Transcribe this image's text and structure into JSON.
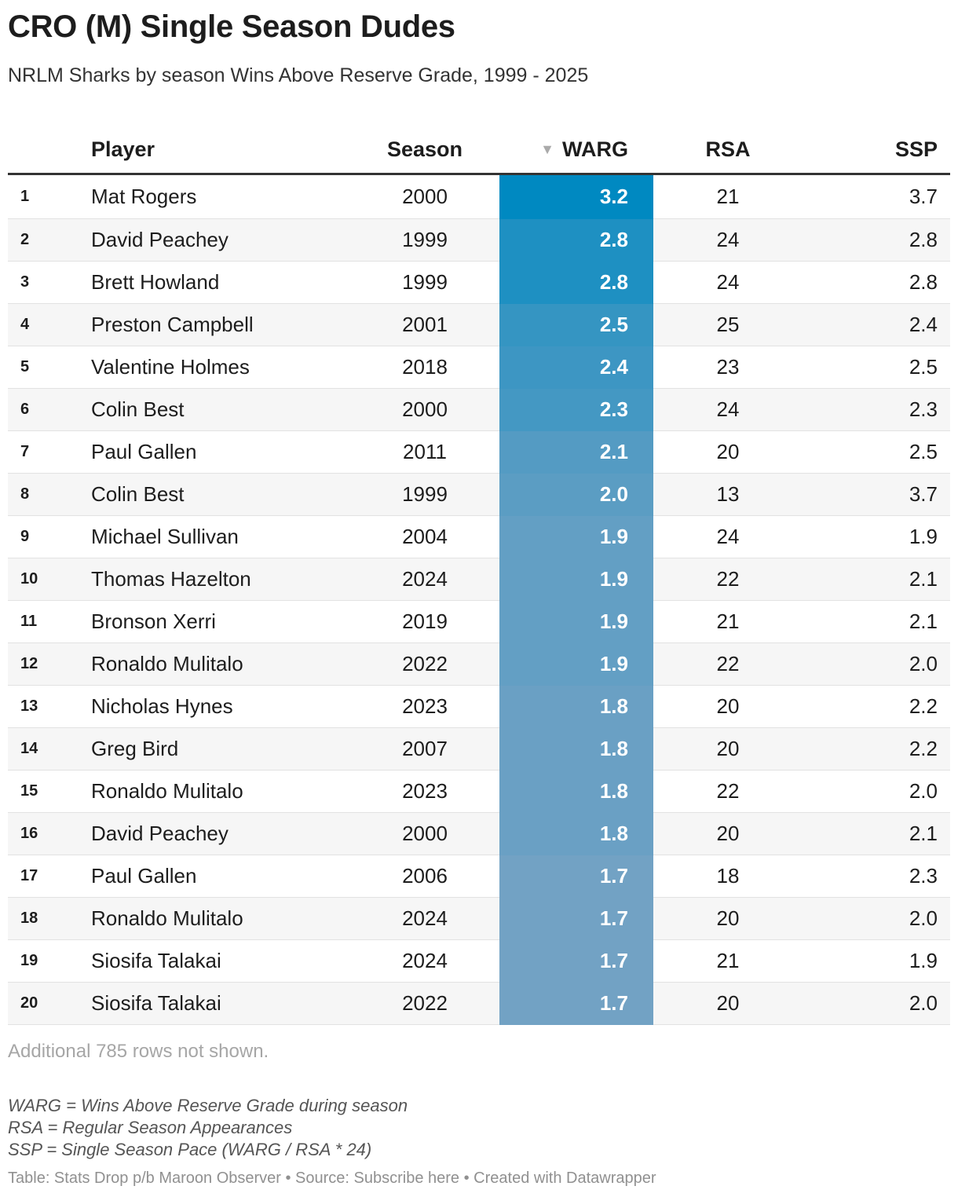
{
  "title": "CRO (M) Single Season Dudes",
  "subtitle": "NRLM Sharks by season Wins Above Reserve Grade, 1999 - 2025",
  "columns": {
    "player": "Player",
    "season": "Season",
    "warg": "WARG",
    "rsa": "RSA",
    "ssp": "SSP"
  },
  "sort": {
    "column": "WARG",
    "direction": "descending",
    "icon": "sort-down-triangle-icon"
  },
  "colors": {
    "warg_max": "#0089c1",
    "warg_min": "#72a2c4",
    "header_rule": "#333333",
    "zebra": "#f6f6f6"
  },
  "rows": [
    {
      "rank": "1",
      "player": "Mat Rogers",
      "season": "2000",
      "warg": "3.2",
      "rsa": "21",
      "ssp": "3.7"
    },
    {
      "rank": "2",
      "player": "David Peachey",
      "season": "1999",
      "warg": "2.8",
      "rsa": "24",
      "ssp": "2.8"
    },
    {
      "rank": "3",
      "player": "Brett Howland",
      "season": "1999",
      "warg": "2.8",
      "rsa": "24",
      "ssp": "2.8"
    },
    {
      "rank": "4",
      "player": "Preston Campbell",
      "season": "2001",
      "warg": "2.5",
      "rsa": "25",
      "ssp": "2.4"
    },
    {
      "rank": "5",
      "player": "Valentine Holmes",
      "season": "2018",
      "warg": "2.4",
      "rsa": "23",
      "ssp": "2.5"
    },
    {
      "rank": "6",
      "player": "Colin Best",
      "season": "2000",
      "warg": "2.3",
      "rsa": "24",
      "ssp": "2.3"
    },
    {
      "rank": "7",
      "player": "Paul Gallen",
      "season": "2011",
      "warg": "2.1",
      "rsa": "20",
      "ssp": "2.5"
    },
    {
      "rank": "8",
      "player": "Colin Best",
      "season": "1999",
      "warg": "2.0",
      "rsa": "13",
      "ssp": "3.7"
    },
    {
      "rank": "9",
      "player": "Michael Sullivan",
      "season": "2004",
      "warg": "1.9",
      "rsa": "24",
      "ssp": "1.9"
    },
    {
      "rank": "10",
      "player": "Thomas Hazelton",
      "season": "2024",
      "warg": "1.9",
      "rsa": "22",
      "ssp": "2.1"
    },
    {
      "rank": "11",
      "player": "Bronson Xerri",
      "season": "2019",
      "warg": "1.9",
      "rsa": "21",
      "ssp": "2.1"
    },
    {
      "rank": "12",
      "player": "Ronaldo Mulitalo",
      "season": "2022",
      "warg": "1.9",
      "rsa": "22",
      "ssp": "2.0"
    },
    {
      "rank": "13",
      "player": "Nicholas Hynes",
      "season": "2023",
      "warg": "1.8",
      "rsa": "20",
      "ssp": "2.2"
    },
    {
      "rank": "14",
      "player": "Greg Bird",
      "season": "2007",
      "warg": "1.8",
      "rsa": "20",
      "ssp": "2.2"
    },
    {
      "rank": "15",
      "player": "Ronaldo Mulitalo",
      "season": "2023",
      "warg": "1.8",
      "rsa": "22",
      "ssp": "2.0"
    },
    {
      "rank": "16",
      "player": "David Peachey",
      "season": "2000",
      "warg": "1.8",
      "rsa": "20",
      "ssp": "2.1"
    },
    {
      "rank": "17",
      "player": "Paul Gallen",
      "season": "2006",
      "warg": "1.7",
      "rsa": "18",
      "ssp": "2.3"
    },
    {
      "rank": "18",
      "player": "Ronaldo Mulitalo",
      "season": "2024",
      "warg": "1.7",
      "rsa": "20",
      "ssp": "2.0"
    },
    {
      "rank": "19",
      "player": "Siosifa Talakai",
      "season": "2024",
      "warg": "1.7",
      "rsa": "21",
      "ssp": "1.9"
    },
    {
      "rank": "20",
      "player": "Siosifa Talakai",
      "season": "2022",
      "warg": "1.7",
      "rsa": "20",
      "ssp": "2.0"
    }
  ],
  "rows_note": "Additional 785 rows not shown.",
  "legend": [
    "WARG = Wins Above Reserve Grade during season",
    "RSA = Regular Season Appearances",
    "SSP = Single Season Pace (WARG / RSA * 24)"
  ],
  "footer": "Table: Stats Drop p/b Maroon Observer • Source: Subscribe here • Created with Datawrapper"
}
